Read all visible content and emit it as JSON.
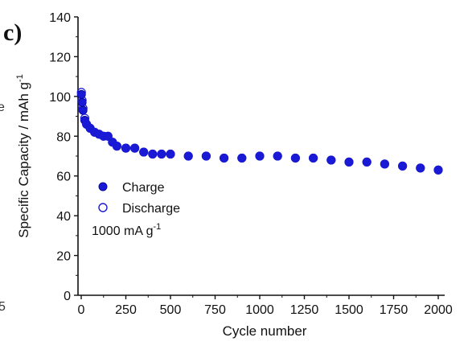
{
  "panel_label": "c)",
  "chart_data": {
    "type": "scatter",
    "xlabel": "Cycle number",
    "ylabel": "Specific Capacity / mAh g",
    "ylabel_superscript": "-1",
    "xlim": [
      0,
      2000
    ],
    "ylim": [
      0,
      140
    ],
    "x_ticks": [
      0,
      250,
      500,
      750,
      1000,
      1250,
      1500,
      1750,
      2000
    ],
    "y_ticks": [
      0,
      20,
      40,
      60,
      80,
      100,
      120,
      140
    ],
    "grid": false,
    "legend_position": "center-left",
    "annotation": {
      "text": "1000 mA g",
      "superscript": "-1"
    },
    "colors": {
      "marker": "#1a1ad6",
      "marker_dark": "#0a0a9a",
      "axis": "#111111"
    },
    "series": [
      {
        "name": "Charge",
        "marker": "filled-circle",
        "x": [
          1,
          5,
          10,
          20,
          30,
          50,
          75,
          100,
          125,
          150,
          175,
          200,
          250,
          300,
          350,
          400,
          450,
          500,
          600,
          700,
          800,
          900,
          1000,
          1100,
          1200,
          1300,
          1400,
          1500,
          1600,
          1700,
          1800,
          1900,
          2000
        ],
        "y": [
          101,
          97,
          93,
          88,
          86,
          84,
          82,
          81,
          80,
          80,
          77,
          75,
          74,
          74,
          72,
          71,
          71,
          71,
          70,
          70,
          69,
          69,
          70,
          70,
          69,
          69,
          68,
          67,
          67,
          66,
          65,
          64,
          63
        ]
      },
      {
        "name": "Discharge",
        "marker": "open-circle",
        "x": [
          1,
          5,
          10,
          20,
          30,
          50,
          75,
          100,
          125,
          150,
          175,
          200,
          250,
          300,
          350,
          400,
          450,
          500,
          600,
          700,
          800,
          900,
          1000,
          1100,
          1200,
          1300,
          1400,
          1500,
          1600,
          1700,
          1800,
          1900,
          2000
        ],
        "y": [
          102,
          98,
          94,
          89,
          86,
          84,
          82,
          81,
          80,
          80,
          77,
          75,
          74,
          74,
          72,
          71,
          71,
          71,
          70,
          70,
          69,
          69,
          70,
          70,
          69,
          69,
          68,
          67,
          67,
          66,
          65,
          64,
          63
        ]
      }
    ]
  },
  "edge_fragments": {
    "left_mid": "e",
    "left_bottom": "5"
  }
}
